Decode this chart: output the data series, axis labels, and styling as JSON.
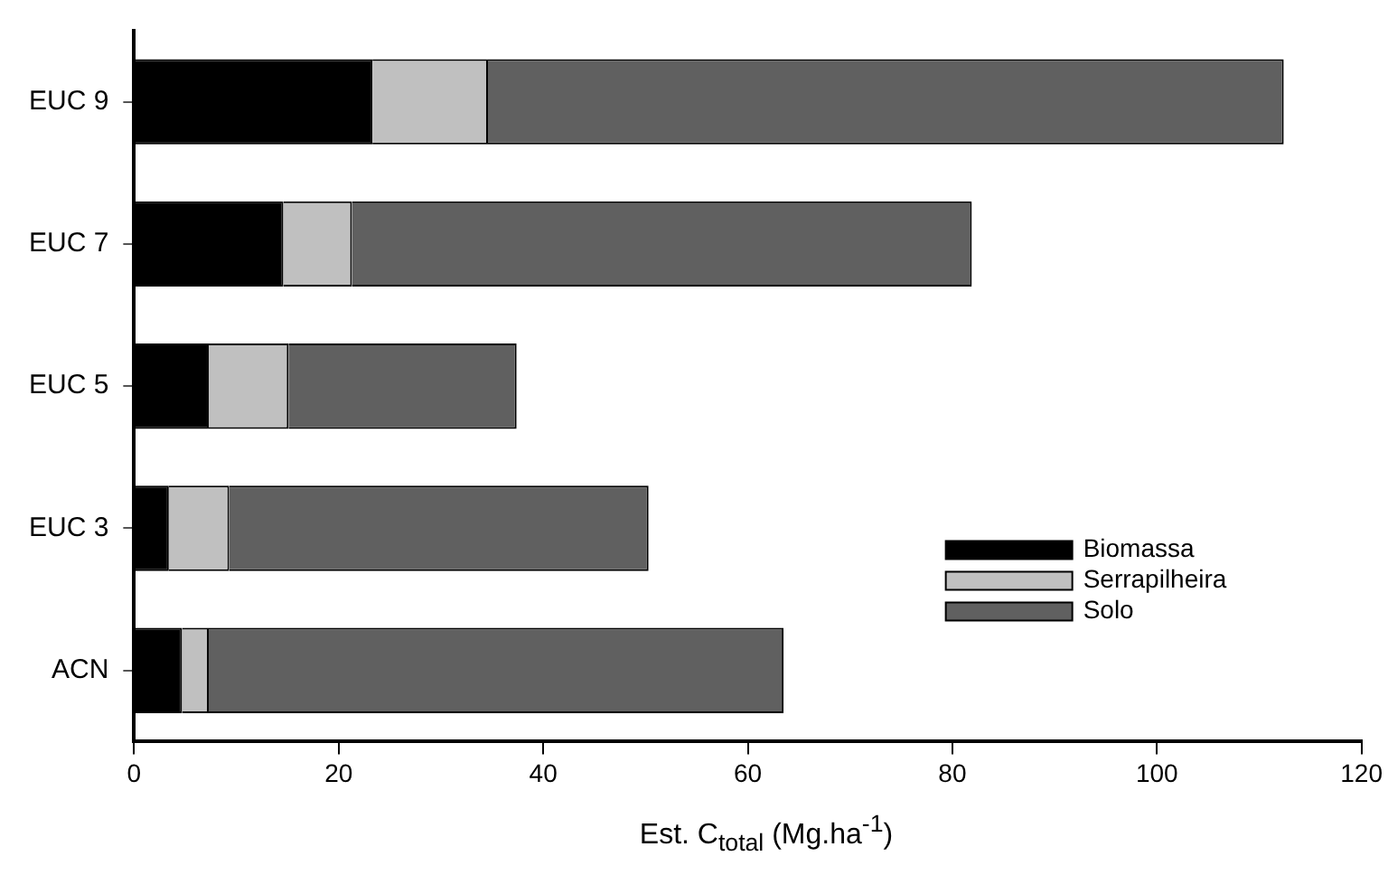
{
  "chart_data": {
    "type": "bar",
    "orientation": "horizontal",
    "stacked": true,
    "categories": [
      "EUC 9",
      "EUC 7",
      "EUC 5",
      "EUC 3",
      "ACN"
    ],
    "series": [
      {
        "name": "Biomassa",
        "color": "#000000",
        "values": [
          23.3,
          14.6,
          7.3,
          3.4,
          4.7
        ]
      },
      {
        "name": "Serrapilheira",
        "color": "#c0c0c0",
        "values": [
          11.3,
          6.7,
          7.8,
          5.9,
          2.6
        ]
      },
      {
        "name": "Solo",
        "color": "#606060",
        "values": [
          77.8,
          60.6,
          22.3,
          41.0,
          56.2
        ]
      }
    ],
    "xlabel": "Est. C$_{total}$ (Mg.ha$^{-1}$)",
    "xlim": [
      0,
      120
    ],
    "xticks": [
      0,
      20,
      40,
      60,
      80,
      100,
      120
    ],
    "grid": false,
    "legend": "bottom right"
  }
}
